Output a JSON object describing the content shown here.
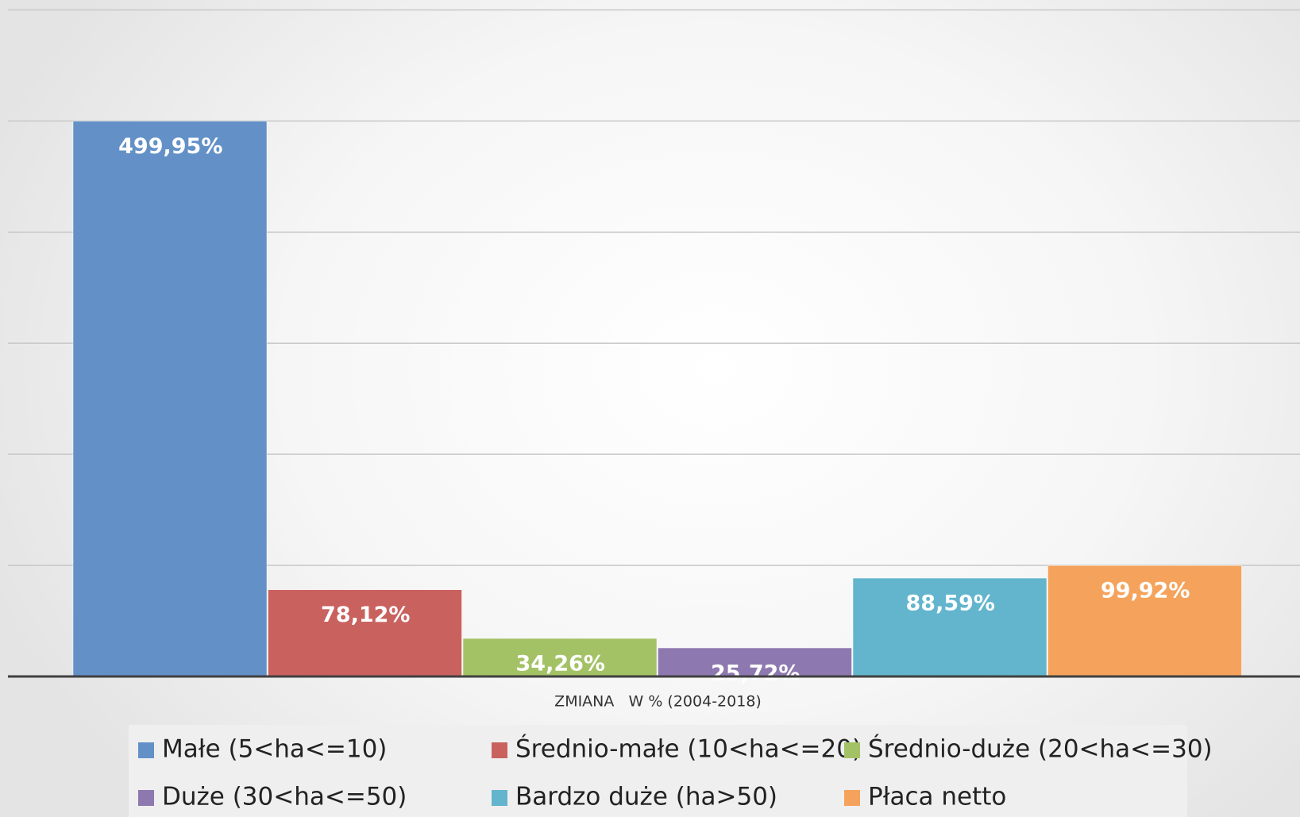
{
  "chart_data": {
    "type": "bar",
    "categories": [
      "ZMIANA   W % (2004-2018)"
    ],
    "series": [
      {
        "name": "Małe (5<ha<=10)",
        "color": "#6391c7",
        "values": [
          499.95
        ],
        "value_labels": [
          "499,95%"
        ]
      },
      {
        "name": "Średnio-małe (10<ha<=20)",
        "color": "#c9625f",
        "values": [
          78.12
        ],
        "value_labels": [
          "78,12%"
        ]
      },
      {
        "name": "Średnio-duże (20<ha<=30)",
        "color": "#a3c266",
        "values": [
          34.26
        ],
        "value_labels": [
          "34,26%"
        ]
      },
      {
        "name": "Duże (30<ha<=50)",
        "color": "#8e78b0",
        "values": [
          25.72
        ],
        "value_labels": [
          "25,72%"
        ]
      },
      {
        "name": "Bardzo duże (ha>50)",
        "color": "#62b5cd",
        "values": [
          88.59
        ],
        "value_labels": [
          "88,59%"
        ]
      },
      {
        "name": "Płaca netto",
        "color": "#f5a35c",
        "values": [
          99.92
        ],
        "value_labels": [
          "99,92%"
        ]
      }
    ],
    "ylim": [
      0,
      600
    ],
    "yticks": [
      0,
      100,
      200,
      300,
      400,
      500,
      600
    ],
    "grid": true,
    "legend": "bottom"
  }
}
